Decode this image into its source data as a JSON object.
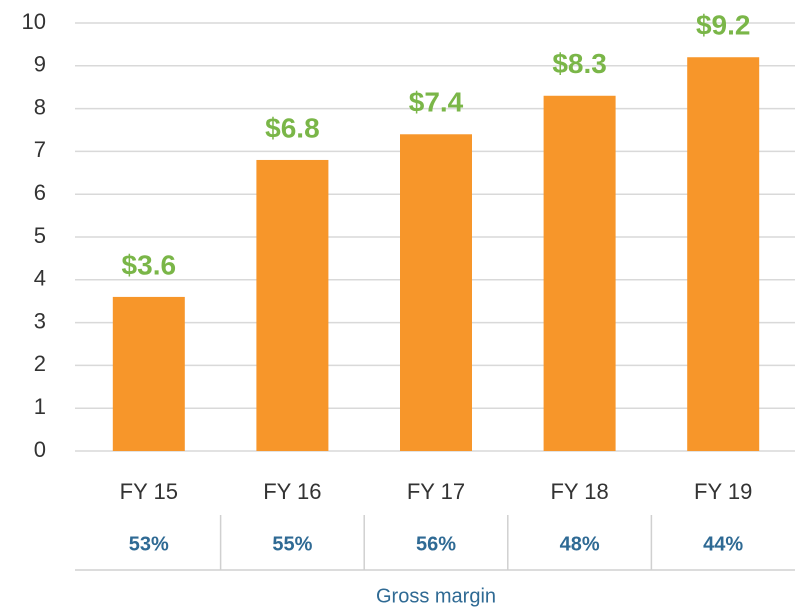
{
  "chart_data": {
    "type": "bar",
    "categories": [
      "FY 15",
      "FY 16",
      "FY 17",
      "FY 18",
      "FY 19"
    ],
    "values": [
      3.6,
      6.8,
      7.4,
      8.3,
      9.2
    ],
    "value_labels": [
      "$3.6",
      "$6.8",
      "$7.4",
      "$8.3",
      "$9.2"
    ],
    "color": "#f7962a",
    "label_color": "#7ab648",
    "ylim": [
      0,
      10
    ],
    "yticks": [
      0,
      1,
      2,
      3,
      4,
      5,
      6,
      7,
      8,
      9,
      10
    ],
    "grid": true,
    "gross_margin": {
      "label": "Gross margin",
      "values": [
        53,
        55,
        56,
        48,
        44
      ],
      "value_labels": [
        "53%",
        "55%",
        "56%",
        "48%",
        "44%"
      ],
      "color": "#2f6a94"
    }
  }
}
